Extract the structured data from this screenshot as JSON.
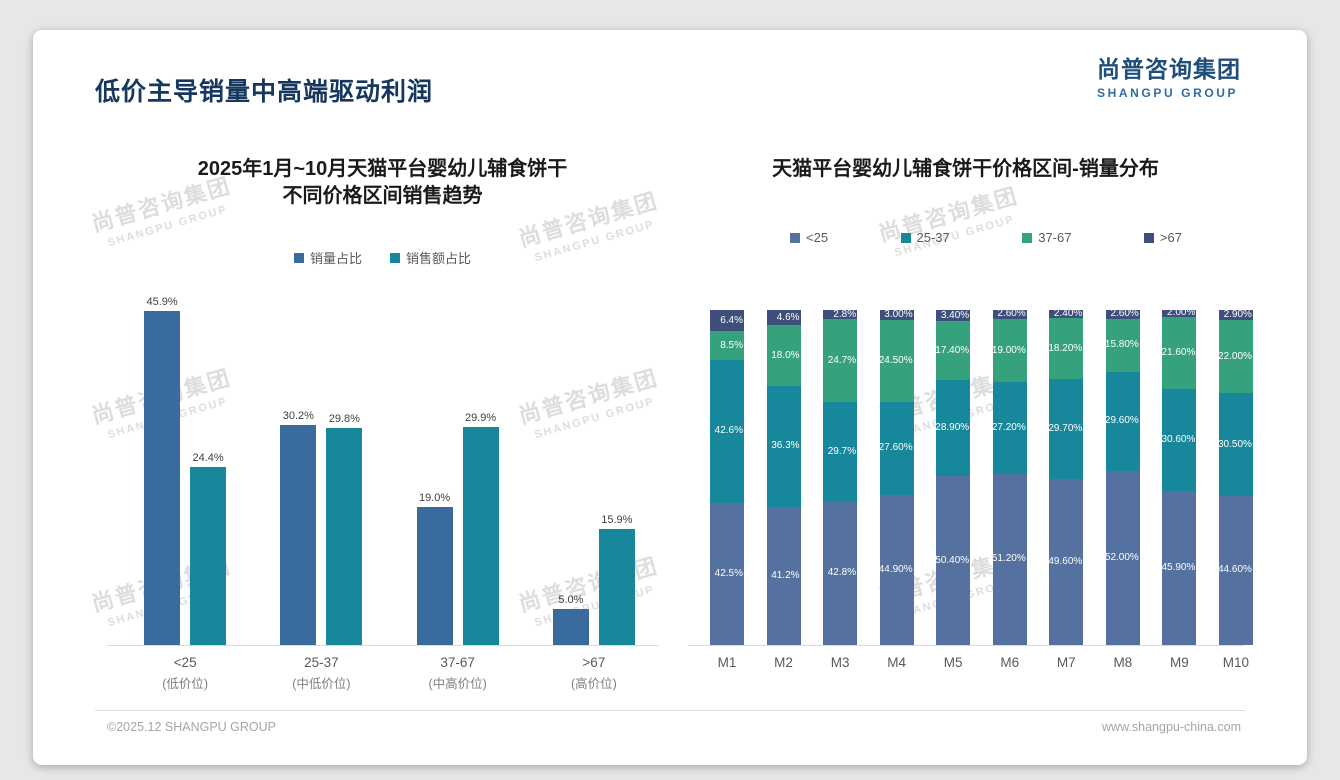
{
  "header": {
    "title": "低价主导销量中高端驱动利润"
  },
  "logo": {
    "cn": "尚普咨询集团",
    "en": "SHANGPU GROUP"
  },
  "watermark": {
    "cn": "尚普咨询集团",
    "en": "SHANGPU GROUP"
  },
  "footer": {
    "left": "©2025.12 SHANGPU GROUP",
    "right": "www.shangpu-china.com"
  },
  "colors": {
    "title_navy": "#17375e",
    "logo_blue": "#1f4e79",
    "volume_blue": "#3a6b9d",
    "value_teal": "#17879c",
    "seg_lt25": "#54719f",
    "seg_25_37": "#17879c",
    "seg_37_67": "#36a17d",
    "seg_gt67": "#3e4f7c"
  },
  "chart_data": [
    {
      "type": "bar",
      "title": "2025年1月~10月天猫平台婴幼儿辅食饼干不同价格区间销售趋势",
      "title_lines": [
        "2025年1月~10月天猫平台婴幼儿辅食饼干",
        "不同价格区间销售趋势"
      ],
      "categories": [
        "<25",
        "25-37",
        "37-67",
        ">67"
      ],
      "category_sublabels": [
        "(低价位)",
        "(中低价位)",
        "(中高价位)",
        "(高价位)"
      ],
      "series": [
        {
          "name": "销量占比",
          "color": "#3a6b9d",
          "values": [
            45.9,
            30.2,
            19.0,
            5.0
          ],
          "labels": [
            "45.9%",
            "30.2%",
            "19.0%",
            "5.0%"
          ]
        },
        {
          "name": "销售额占比",
          "color": "#17879c",
          "values": [
            24.4,
            29.8,
            29.9,
            15.9
          ],
          "labels": [
            "24.4%",
            "29.8%",
            "29.9%",
            "15.9%"
          ]
        }
      ],
      "xlabel": "",
      "ylabel": "",
      "ylim": [
        0,
        50
      ],
      "grid": false,
      "legend_position": "top"
    },
    {
      "type": "bar",
      "stacked": true,
      "title": "天猫平台婴幼儿辅食饼干价格区间-销量分布",
      "categories": [
        "M1",
        "M2",
        "M3",
        "M4",
        "M5",
        "M6",
        "M7",
        "M8",
        "M9",
        "M10"
      ],
      "series": [
        {
          "name": "<25",
          "color": "#54719f",
          "values": [
            42.5,
            41.2,
            42.8,
            44.9,
            50.4,
            51.2,
            49.6,
            52.0,
            45.9,
            44.6
          ],
          "labels": [
            "42.5%",
            "41.2%",
            "42.8%",
            "44.90%",
            "50.40%",
            "51.20%",
            "49.60%",
            "52.00%",
            "45.90%",
            "44.60%"
          ]
        },
        {
          "name": "25-37",
          "color": "#17879c",
          "values": [
            42.6,
            36.3,
            29.7,
            27.6,
            28.9,
            27.2,
            29.7,
            29.6,
            30.6,
            30.5
          ],
          "labels": [
            "42.6%",
            "36.3%",
            "29.7%",
            "27.60%",
            "28.90%",
            "27.20%",
            "29.70%",
            "29.60%",
            "30.60%",
            "30.50%"
          ]
        },
        {
          "name": "37-67",
          "color": "#36a17d",
          "values": [
            8.5,
            18.0,
            24.7,
            24.5,
            17.4,
            19.0,
            18.2,
            15.8,
            21.6,
            22.0
          ],
          "labels": [
            "8.5%",
            "18.0%",
            "24.7%",
            "24.50%",
            "17.40%",
            "19.00%",
            "18.20%",
            "15.80%",
            "21.60%",
            "22.00%"
          ]
        },
        {
          "name": ">67",
          "color": "#3e4f7c",
          "values": [
            6.4,
            4.6,
            2.8,
            3.0,
            3.4,
            2.6,
            2.4,
            2.6,
            2.0,
            2.9
          ],
          "labels": [
            "6.4%",
            "4.6%",
            "2.8%",
            "3.00%",
            "3.40%",
            "2.60%",
            "2.40%",
            "2.60%",
            "2.00%",
            "2.90%"
          ]
        }
      ],
      "xlabel": "",
      "ylabel": "",
      "ylim": [
        0,
        100
      ],
      "grid": false,
      "legend_position": "top"
    }
  ]
}
